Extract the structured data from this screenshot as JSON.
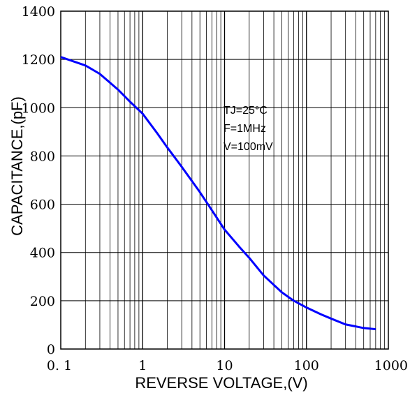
{
  "chart_data": {
    "type": "line",
    "title": "",
    "xlabel": "REVERSE VOLTAGE,(V)",
    "ylabel": "CAPACITANCE,(pF)",
    "x_scale": "log",
    "xlim": [
      0.1,
      1000
    ],
    "ylim": [
      0,
      1400
    ],
    "x_ticks": [
      "0. 1",
      "1",
      "10",
      "100",
      "1000"
    ],
    "y_ticks": [
      "0",
      "200",
      "400",
      "600",
      "800",
      "1000",
      "1200",
      "1400"
    ],
    "grid": true,
    "annotations": [
      "TJ=25°C",
      "F=1MHz",
      "V=100mV"
    ],
    "series": [
      {
        "x": [
          0.1,
          0.2,
          0.3,
          0.5,
          0.7,
          1,
          1.5,
          2,
          3,
          5,
          7,
          10,
          15,
          20,
          30,
          50,
          70,
          100,
          150,
          200,
          300,
          500,
          700
        ],
        "y": [
          1210,
          1175,
          1140,
          1075,
          1025,
          975,
          895,
          835,
          755,
          650,
          575,
          495,
          425,
          378,
          305,
          235,
          200,
          172,
          144,
          126,
          102,
          87,
          82
        ]
      }
    ],
    "colors": {
      "line": "#0000ff",
      "grid": "#000000",
      "axes": "#000000"
    }
  }
}
